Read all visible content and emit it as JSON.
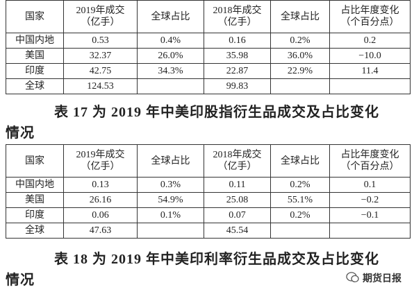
{
  "tables": [
    {
      "header": [
        [
          "国家"
        ],
        [
          "2019年成交",
          "（亿手）"
        ],
        [
          "全球占比"
        ],
        [
          "2018年成交",
          "（亿手）"
        ],
        [
          "全球占比"
        ],
        [
          "占比年度变化",
          "（个百分点）"
        ]
      ],
      "rows": [
        [
          "中国内地",
          "0.53",
          "0.4%",
          "0.16",
          "0.2%",
          "0.2"
        ],
        [
          "美国",
          "32.37",
          "26.0%",
          "35.98",
          "36.0%",
          "−10.0"
        ],
        [
          "印度",
          "42.75",
          "34.3%",
          "22.87",
          "22.9%",
          "11.4"
        ],
        [
          "全球",
          "124.53",
          null,
          "99.83",
          null,
          null
        ]
      ],
      "caption": [
        "表 17 为 2019 年中美印股指衍生品成交及占比变化",
        "情况"
      ]
    },
    {
      "header": [
        [
          "国家"
        ],
        [
          "2019年成交",
          "（亿手）"
        ],
        [
          "全球占比"
        ],
        [
          "2018年成交",
          "（亿手）"
        ],
        [
          "全球占比"
        ],
        [
          "占比年度变化",
          "（个百分点）"
        ]
      ],
      "rows": [
        [
          "中国内地",
          "0.13",
          "0.3%",
          "0.11",
          "0.2%",
          "0.1"
        ],
        [
          "美国",
          "26.16",
          "54.9%",
          "25.08",
          "55.1%",
          "−0.2"
        ],
        [
          "印度",
          "0.06",
          "0.1%",
          "0.07",
          "0.2%",
          "−0.1"
        ],
        [
          "全球",
          "47.63",
          null,
          "45.54",
          null,
          null
        ]
      ],
      "caption": [
        "表 18 为 2019 年中美印利率衍生品成交及占比变化",
        "情况"
      ]
    }
  ],
  "watermark": "期货日报"
}
